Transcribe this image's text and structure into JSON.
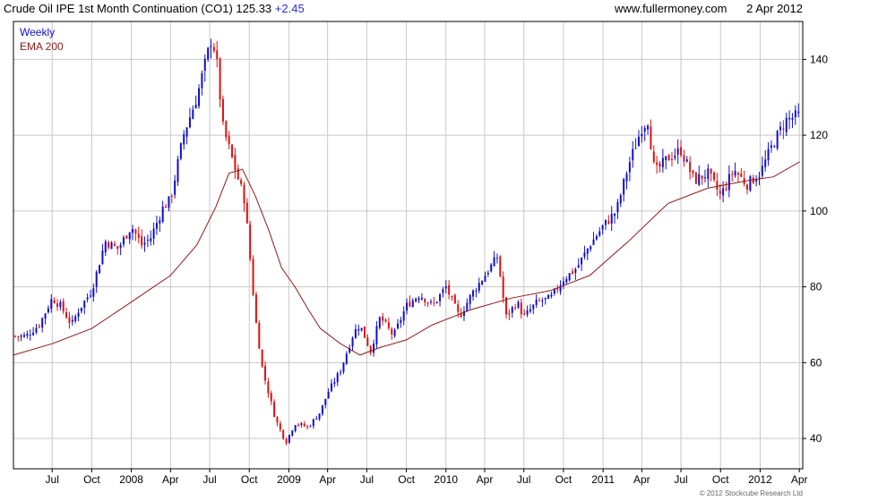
{
  "header": {
    "title": "Crude Oil IPE 1st Month Continuation (CO1) 125.33",
    "change": "+2.45",
    "site": "www.fullermoney.com",
    "date": "2 Apr 2012"
  },
  "legend": {
    "weekly": "Weekly",
    "ema": "EMA 200"
  },
  "copyright": "© 2012 Stockcube Research Ltd",
  "colors": {
    "up": "#1010c8",
    "down": "#e01010",
    "ema": "#8b1a1a",
    "grid": "#c8c8c8"
  },
  "chart_data": {
    "type": "line",
    "subtype": "candlestick-weekly",
    "xlabel": "",
    "ylabel": "",
    "y_axis_side": "right",
    "ylim": [
      32,
      150
    ],
    "yticks": [
      40,
      60,
      80,
      100,
      120,
      140
    ],
    "xlim": [
      "2007-04-02",
      "2012-04-09"
    ],
    "x_ticks": [
      {
        "label": "Jul",
        "date": "2007-07-01"
      },
      {
        "label": "Oct",
        "date": "2007-10-01"
      },
      {
        "label": "2008",
        "date": "2008-01-01"
      },
      {
        "label": "Apr",
        "date": "2008-04-01"
      },
      {
        "label": "Jul",
        "date": "2008-07-01"
      },
      {
        "label": "Oct",
        "date": "2008-10-01"
      },
      {
        "label": "2009",
        "date": "2009-01-01"
      },
      {
        "label": "Apr",
        "date": "2009-04-01"
      },
      {
        "label": "Jul",
        "date": "2009-07-01"
      },
      {
        "label": "Oct",
        "date": "2009-10-01"
      },
      {
        "label": "2010",
        "date": "2010-01-01"
      },
      {
        "label": "Apr",
        "date": "2010-04-01"
      },
      {
        "label": "Jul",
        "date": "2010-07-01"
      },
      {
        "label": "Oct",
        "date": "2010-10-01"
      },
      {
        "label": "2011",
        "date": "2011-01-01"
      },
      {
        "label": "Apr",
        "date": "2011-04-01"
      },
      {
        "label": "Jul",
        "date": "2011-07-01"
      },
      {
        "label": "Oct",
        "date": "2011-10-01"
      },
      {
        "label": "2012",
        "date": "2012-01-01"
      },
      {
        "label": "Apr",
        "date": "2012-04-01"
      }
    ],
    "grid": true,
    "legend_position": "top-left",
    "series": [
      {
        "name": "Weekly",
        "style": "candlestick",
        "points": [
          [
            "2007-04-06",
            67
          ],
          [
            "2007-05-01",
            67
          ],
          [
            "2007-06-01",
            70
          ],
          [
            "2007-07-01",
            77
          ],
          [
            "2007-07-20",
            75
          ],
          [
            "2007-08-15",
            70
          ],
          [
            "2007-09-01",
            74
          ],
          [
            "2007-10-01",
            79
          ],
          [
            "2007-11-01",
            92
          ],
          [
            "2007-12-01",
            90
          ],
          [
            "2008-01-01",
            96
          ],
          [
            "2008-01-25",
            91
          ],
          [
            "2008-02-15",
            93
          ],
          [
            "2008-03-15",
            101
          ],
          [
            "2008-04-01",
            103
          ],
          [
            "2008-05-01",
            120
          ],
          [
            "2008-06-01",
            130
          ],
          [
            "2008-07-04",
            145
          ],
          [
            "2008-07-15",
            142
          ],
          [
            "2008-08-01",
            122
          ],
          [
            "2008-09-01",
            110
          ],
          [
            "2008-09-20",
            103
          ],
          [
            "2008-10-01",
            90
          ],
          [
            "2008-10-15",
            72
          ],
          [
            "2008-11-01",
            58
          ],
          [
            "2008-12-01",
            45
          ],
          [
            "2008-12-25",
            39
          ],
          [
            "2009-01-15",
            44
          ],
          [
            "2009-02-15",
            43
          ],
          [
            "2009-03-15",
            47
          ],
          [
            "2009-04-01",
            52
          ],
          [
            "2009-05-01",
            58
          ],
          [
            "2009-06-01",
            68
          ],
          [
            "2009-06-15",
            70
          ],
          [
            "2009-07-10",
            63
          ],
          [
            "2009-08-01",
            72
          ],
          [
            "2009-09-01",
            67
          ],
          [
            "2009-10-01",
            75
          ],
          [
            "2009-11-01",
            78
          ],
          [
            "2009-12-01",
            75
          ],
          [
            "2010-01-01",
            80
          ],
          [
            "2010-02-01",
            72
          ],
          [
            "2010-03-01",
            78
          ],
          [
            "2010-04-01",
            83
          ],
          [
            "2010-05-01",
            88
          ],
          [
            "2010-05-20",
            72
          ],
          [
            "2010-06-15",
            76
          ],
          [
            "2010-07-01",
            72
          ],
          [
            "2010-08-01",
            76
          ],
          [
            "2010-09-01",
            77
          ],
          [
            "2010-10-01",
            82
          ],
          [
            "2010-11-01",
            85
          ],
          [
            "2010-12-01",
            91
          ],
          [
            "2011-01-01",
            96
          ],
          [
            "2011-02-01",
            100
          ],
          [
            "2011-03-01",
            112
          ],
          [
            "2011-04-01",
            122
          ],
          [
            "2011-04-15",
            124
          ],
          [
            "2011-05-01",
            110
          ],
          [
            "2011-06-01",
            114
          ],
          [
            "2011-07-01",
            116
          ],
          [
            "2011-08-01",
            108
          ],
          [
            "2011-09-01",
            110
          ],
          [
            "2011-10-01",
            104
          ],
          [
            "2011-11-01",
            111
          ],
          [
            "2011-12-01",
            107
          ],
          [
            "2012-01-01",
            110
          ],
          [
            "2012-02-01",
            118
          ],
          [
            "2012-03-01",
            124
          ],
          [
            "2012-04-02",
            125.33
          ]
        ]
      },
      {
        "name": "EMA 200",
        "style": "line",
        "points": [
          [
            "2007-04-02",
            62
          ],
          [
            "2007-07-01",
            65
          ],
          [
            "2007-10-01",
            69
          ],
          [
            "2008-01-01",
            76
          ],
          [
            "2008-04-01",
            83
          ],
          [
            "2008-06-01",
            91
          ],
          [
            "2008-07-15",
            101
          ],
          [
            "2008-08-15",
            110
          ],
          [
            "2008-09-15",
            111
          ],
          [
            "2008-10-15",
            104
          ],
          [
            "2008-11-15",
            95
          ],
          [
            "2008-12-15",
            85
          ],
          [
            "2009-01-15",
            80
          ],
          [
            "2009-02-15",
            74
          ],
          [
            "2009-03-15",
            69
          ],
          [
            "2009-05-01",
            65
          ],
          [
            "2009-06-15",
            62
          ],
          [
            "2009-08-01",
            64
          ],
          [
            "2009-10-01",
            66
          ],
          [
            "2009-12-01",
            70
          ],
          [
            "2010-03-01",
            74
          ],
          [
            "2010-06-01",
            77
          ],
          [
            "2010-09-01",
            79
          ],
          [
            "2010-12-01",
            83
          ],
          [
            "2011-03-01",
            92
          ],
          [
            "2011-06-01",
            102
          ],
          [
            "2011-09-01",
            106
          ],
          [
            "2011-12-01",
            108
          ],
          [
            "2012-02-01",
            109
          ],
          [
            "2012-04-02",
            113
          ]
        ]
      }
    ]
  }
}
